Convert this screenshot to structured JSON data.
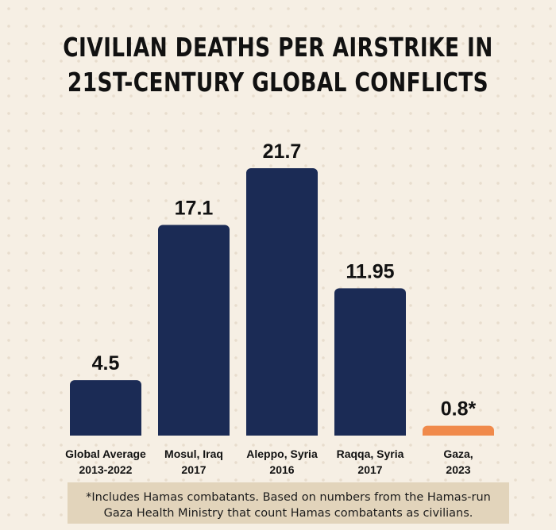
{
  "title_line1": "CIVILIAN DEATHS PER AIRSTRIKE IN",
  "title_line2": "21ST-CENTURY GLOBAL CONFLICTS",
  "footnote_line1": "*Includes Hamas combatants. Based on numbers from the Hamas-run",
  "footnote_line2": "Gaza Health Ministry that count Hamas combatants as civilians.",
  "colors": {
    "bar": "#1b2b55",
    "highlight": "#f08a4b",
    "text": "#111111"
  },
  "chart_data": {
    "type": "bar",
    "title": "CIVILIAN DEATHS PER AIRSTRIKE IN 21ST-CENTURY GLOBAL CONFLICTS",
    "xlabel": "",
    "ylabel": "",
    "ylim": [
      0,
      21.7
    ],
    "grid": false,
    "categories": [
      [
        "Global Average",
        "2013-2022"
      ],
      [
        "Mosul, Iraq",
        "2017"
      ],
      [
        "Aleppo, Syria",
        "2016"
      ],
      [
        "Raqqa, Syria",
        "2017"
      ],
      [
        "Gaza,",
        "2023"
      ]
    ],
    "values": [
      4.5,
      17.1,
      21.7,
      11.95,
      0.8
    ],
    "value_labels": [
      "4.5",
      "17.1",
      "21.7",
      "11.95",
      "0.8*"
    ],
    "highlight_index": 4
  }
}
